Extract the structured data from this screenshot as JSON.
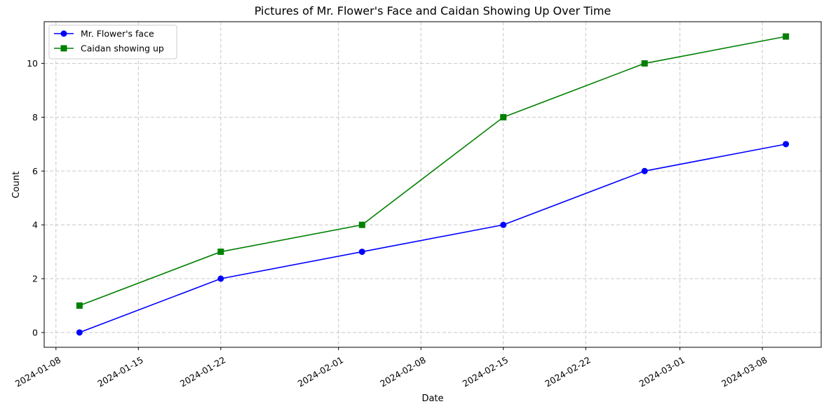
{
  "chart_data": {
    "type": "line",
    "title": "Pictures of Mr. Flower's Face and Caidan Showing Up Over Time",
    "xlabel": "Date",
    "ylabel": "Count",
    "x": [
      "2024-01-10",
      "2024-01-22",
      "2024-02-03",
      "2024-02-15",
      "2024-02-27",
      "2024-03-10"
    ],
    "xlim": [
      "2024-01-07",
      "2024-03-13"
    ],
    "ylim": [
      -0.55,
      11.55
    ],
    "xticks": [
      "2024-01-08",
      "2024-01-15",
      "2024-01-22",
      "2024-02-01",
      "2024-02-08",
      "2024-02-15",
      "2024-02-22",
      "2024-03-01",
      "2024-03-08"
    ],
    "yticks": [
      0,
      2,
      4,
      6,
      8,
      10
    ],
    "grid": true,
    "legend_position": "top-left",
    "series": [
      {
        "name": "Mr. Flower's face",
        "values": [
          0,
          2,
          3,
          4,
          6,
          7
        ],
        "color": "#0000ff",
        "marker": "circle"
      },
      {
        "name": "Caidan showing up",
        "values": [
          1,
          3,
          4,
          8,
          10,
          11
        ],
        "color": "#008000",
        "marker": "square"
      }
    ]
  }
}
